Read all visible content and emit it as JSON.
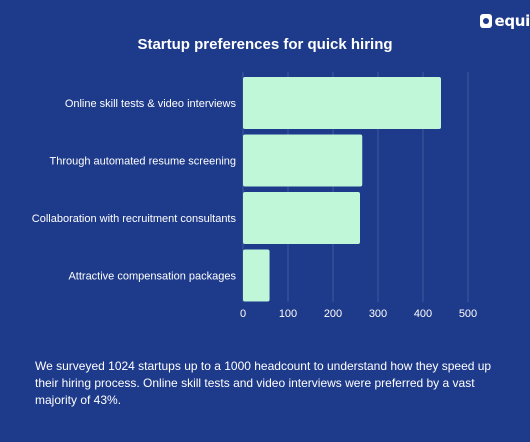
{
  "brand": {
    "name": "equi"
  },
  "colors": {
    "background": "#1e3a8a",
    "bar": "#bff7d8",
    "grid": "#3f5aa0",
    "text": "#ffffff"
  },
  "chart_data": {
    "type": "bar",
    "orientation": "horizontal",
    "title": "Startup preferences for quick hiring",
    "categories": [
      "Online skill tests & video interviews",
      "Through automated resume screening",
      "Collaboration with recruitment consultants",
      "Attractive compensation packages"
    ],
    "values": [
      440,
      265,
      260,
      59
    ],
    "xlim": [
      0,
      500
    ],
    "xticks": [
      "0",
      "100",
      "200",
      "300",
      "400",
      "500"
    ],
    "grid": true,
    "legend": "none"
  },
  "caption": "We surveyed 1024 startups up to a 1000 headcount to understand how they speed up their hiring process. Online skill tests and video interviews were preferred by a vast majority of 43%."
}
